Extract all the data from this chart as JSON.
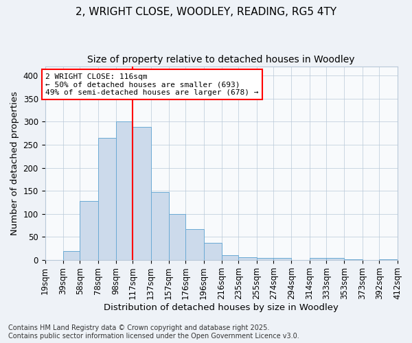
{
  "title_line1": "2, WRIGHT CLOSE, WOODLEY, READING, RG5 4TY",
  "title_line2": "Size of property relative to detached houses in Woodley",
  "xlabel": "Distribution of detached houses by size in Woodley",
  "ylabel": "Number of detached properties",
  "bar_color": "#ccdaeb",
  "bar_edge_color": "#6aaad4",
  "vline_x": 117,
  "vline_color": "red",
  "annotation_title": "2 WRIGHT CLOSE: 116sqm",
  "annotation_line2": "← 50% of detached houses are smaller (693)",
  "annotation_line3": "49% of semi-detached houses are larger (678) →",
  "annotation_box_color": "red",
  "bin_edges": [
    19,
    39,
    58,
    78,
    98,
    117,
    137,
    157,
    176,
    196,
    216,
    235,
    255,
    274,
    294,
    314,
    333,
    353,
    373,
    392,
    412
  ],
  "bar_heights": [
    0,
    20,
    128,
    265,
    300,
    288,
    148,
    100,
    67,
    37,
    10,
    6,
    5,
    5,
    0,
    5,
    5,
    1,
    0,
    1
  ],
  "ylim": [
    0,
    420
  ],
  "yticks": [
    0,
    50,
    100,
    150,
    200,
    250,
    300,
    350,
    400
  ],
  "background_color": "#eef2f7",
  "plot_bg_color": "#f8fafc",
  "grid_color": "#b8c8d8",
  "footer_line1": "Contains HM Land Registry data © Crown copyright and database right 2025.",
  "footer_line2": "Contains public sector information licensed under the Open Government Licence v3.0.",
  "title_fontsize": 11,
  "subtitle_fontsize": 10,
  "axis_label_fontsize": 9.5,
  "tick_fontsize": 8.5,
  "annotation_fontsize": 8,
  "footer_fontsize": 7
}
